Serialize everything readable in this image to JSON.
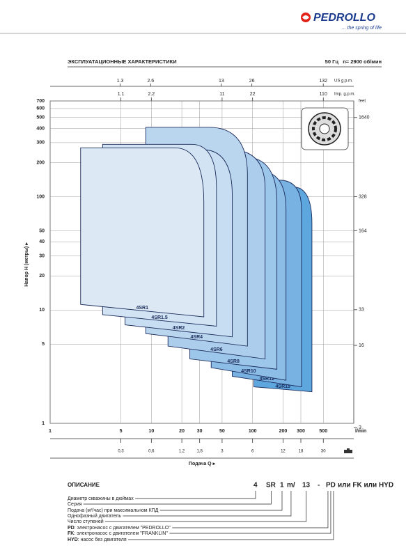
{
  "header": {
    "brand": "PEDROLLO",
    "tagline": "... the spring of life"
  },
  "section": {
    "title": "ЭКСПЛУАТАЦИОННЫЕ ХАРАКТЕРИСТИКИ",
    "conditions": "50 Гц   n= 2900 об/мин"
  },
  "chart_data": {
    "type": "area",
    "xlabel": "Подача Q ▸",
    "ylabel": "Напор H (метры) ▸",
    "x_unit": "l/min",
    "xlim": [
      1,
      1000
    ],
    "xticks": [
      1,
      5,
      10,
      20,
      30,
      50,
      100,
      200,
      300,
      500
    ],
    "log_x": true,
    "ylim": [
      1,
      700
    ],
    "yticks": [
      1,
      5,
      10,
      20,
      30,
      40,
      50,
      100,
      200,
      300,
      400,
      500,
      600,
      700
    ],
    "log_y": true,
    "grid": true,
    "top_axes": [
      {
        "unit": "US g.p.m.",
        "ticks": [
          1.3,
          2.6,
          13,
          26,
          132
        ]
      },
      {
        "unit": "Imp. g.p.m.",
        "ticks": [
          1.1,
          2.2,
          11,
          22,
          110
        ]
      }
    ],
    "right_axis": {
      "unit": "feet",
      "ticks": [
        3,
        16,
        33,
        164,
        328,
        1640
      ]
    },
    "bottom_axis": {
      "ticks": [
        {
          "value": 0.3,
          "label": "0,3"
        },
        {
          "value": 0.6,
          "label": "0,6"
        },
        {
          "value": 1.2,
          "label": "1,2"
        },
        {
          "value": 1.8,
          "label": "1,8"
        },
        3,
        6,
        12,
        18,
        30
      ]
    },
    "series": [
      {
        "name": "4SR15",
        "color": "#5ea6de",
        "x": [
          103,
          103,
          251,
          386,
          386
        ],
        "values": [
          2.1,
          122,
          122,
          58,
          1.9
        ]
      },
      {
        "name": "4SR12",
        "color": "#77b2e3",
        "x": [
          63,
          63,
          183,
          304,
          304
        ],
        "values": [
          2.6,
          140,
          140,
          78,
          2.1
        ]
      },
      {
        "name": "4SR10",
        "color": "#8bbde7",
        "x": [
          39,
          39,
          114,
          214,
          214
        ],
        "values": [
          3.1,
          169,
          169,
          78,
          2.4
        ]
      },
      {
        "name": "4SR8",
        "color": "#9cc6ea",
        "x": [
          24,
          24,
          83,
          174,
          174
        ],
        "values": [
          3.7,
          224,
          224,
          89,
          3.0
        ]
      },
      {
        "name": "4SR6",
        "color": "#acceec",
        "x": [
          14.6,
          14.6,
          60,
          133,
          133
        ],
        "values": [
          4.8,
          260,
          260,
          118,
          3.7
        ]
      },
      {
        "name": "4SR4",
        "color": "#bad6ef",
        "x": [
          8.8,
          8.8,
          37,
          89,
          89
        ],
        "values": [
          6.2,
          410,
          410,
          157,
          4.8
        ]
      },
      {
        "name": "4SR2",
        "color": "#c7ddf1",
        "x": [
          5.5,
          5.5,
          32,
          63,
          63
        ],
        "values": [
          7.4,
          260,
          260,
          103,
          5.8
        ]
      },
      {
        "name": "4SR1.5",
        "color": "#d2e4f3",
        "x": [
          3.3,
          3.3,
          25,
          44,
          44
        ],
        "values": [
          9.1,
          290,
          290,
          118,
          7.2
        ]
      },
      {
        "name": "4SR1",
        "color": "#dce9f5",
        "x": [
          2.0,
          2.0,
          17,
          33,
          33
        ],
        "values": [
          11.2,
          270,
          270,
          89,
          8.7
        ]
      }
    ]
  },
  "description": {
    "title": "ОПИСАНИЕ",
    "code": [
      "4",
      "SR",
      "1",
      "m/",
      "13",
      "-",
      "PD"
    ],
    "code_tail": "или FK или HYD",
    "items": [
      "Диаметр скважины в дюймах",
      "Серия",
      "Подача (м³/час) при максимальном КПД",
      "Однофазный двигатель",
      "Число ступеней"
    ],
    "legend": [
      {
        "code": "PD",
        "text": ": электронасос с двигателем \"PEDROLLO\""
      },
      {
        "code": "FK",
        "text": ": электронасос с двигателем \"FRANKLIN\""
      },
      {
        "code": "HYD",
        "text": ": насос без двигателя"
      }
    ]
  }
}
